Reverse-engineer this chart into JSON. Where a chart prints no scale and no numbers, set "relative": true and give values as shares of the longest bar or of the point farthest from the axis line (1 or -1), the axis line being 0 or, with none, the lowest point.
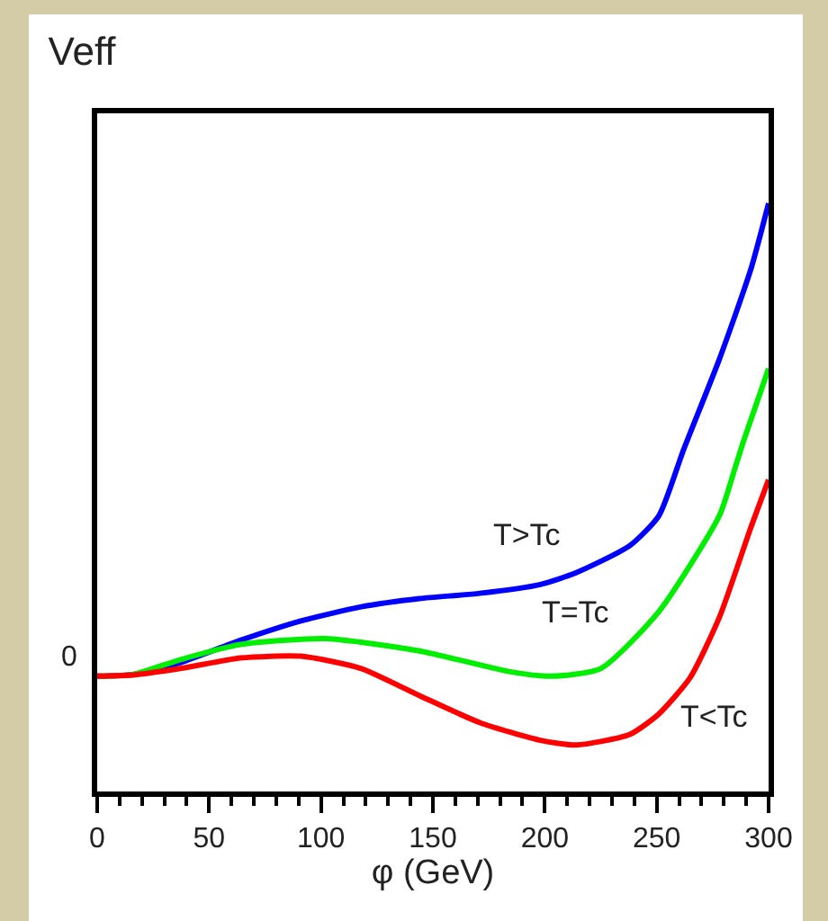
{
  "chart_data": {
    "type": "line",
    "title": "Veff",
    "xlabel": "φ (GeV)",
    "xlim": [
      0,
      300
    ],
    "xticks": [
      0,
      50,
      100,
      150,
      200,
      250,
      300
    ],
    "relative": true,
    "grid": false,
    "marker": "none",
    "line_style": "solid",
    "series": [
      {
        "color": "#0000ff",
        "x": [
          0,
          16,
          37,
          64,
          91,
          118,
          144,
          171,
          198,
          214,
          238,
          251,
          262,
          278,
          292,
          300
        ],
        "values": [
          0.196,
          0.199,
          0.219,
          0.257,
          0.29,
          0.314,
          0.328,
          0.337,
          0.352,
          0.372,
          0.418,
          0.469,
          0.581,
          0.735,
          0.887,
          1
        ]
      },
      {
        "color": "#00ee00",
        "x": [
          0,
          16,
          37,
          64,
          102,
          144,
          184,
          203,
          225,
          251,
          278,
          285,
          289,
          300
        ],
        "values": [
          0.196,
          0.199,
          0.224,
          0.25,
          0.26,
          0.239,
          0.204,
          0.196,
          0.209,
          0.306,
          0.469,
          0.55,
          0.598,
          0.719
        ]
      },
      {
        "color": "#ff0000",
        "x": [
          0,
          16,
          37,
          64,
          91,
          118,
          144,
          171,
          198,
          214,
          238,
          251,
          265,
          278,
          292,
          300
        ],
        "values": [
          0.196,
          0.198,
          0.209,
          0.227,
          0.23,
          0.209,
          0.163,
          0.117,
          0.087,
          0.079,
          0.097,
          0.132,
          0.194,
          0.296,
          0.448,
          0.53
        ]
      }
    ],
    "annotations": [
      "0",
      "T>Tc",
      "T=Tc",
      "T<Tc"
    ]
  }
}
